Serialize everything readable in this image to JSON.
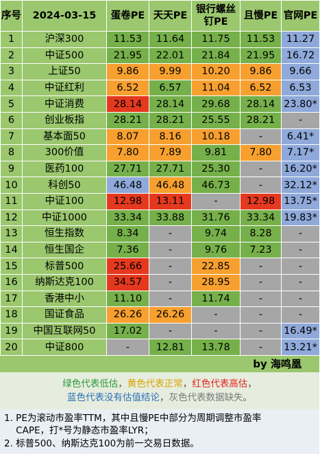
{
  "header": {
    "col_index": "序号",
    "col_date": "2024-03-15",
    "col_danjuan": "蛋卷PE",
    "col_tiantian": "天天PE",
    "col_yinhang": "银行螺丝钉PE",
    "col_qieman": "且慢PE",
    "col_guanwang": "官网PE"
  },
  "rows": [
    {
      "no": "1",
      "name": "沪深300",
      "danjuan": "11.53",
      "tiantian": "11.64",
      "yinhang": "11.75",
      "qieman": "11.53",
      "guanwang": "11.27",
      "colors": [
        "g",
        "g",
        "g",
        "g",
        "b"
      ]
    },
    {
      "no": "2",
      "name": "中证500",
      "danjuan": "21.95",
      "tiantian": "22.01",
      "yinhang": "21.84",
      "qieman": "21.95",
      "guanwang": "16.72",
      "colors": [
        "g",
        "g",
        "g",
        "g",
        "b"
      ]
    },
    {
      "no": "3",
      "name": "上证50",
      "danjuan": "9.86",
      "tiantian": "9.99",
      "yinhang": "10.20",
      "qieman": "9.86",
      "guanwang": "9.66",
      "colors": [
        "y",
        "y",
        "y",
        "y",
        "b"
      ]
    },
    {
      "no": "4",
      "name": "中证红利",
      "danjuan": "6.52",
      "tiantian": "6.57",
      "yinhang": "11.04",
      "qieman": "6.52",
      "guanwang": "6.53",
      "colors": [
        "y",
        "g",
        "y",
        "y",
        "b"
      ]
    },
    {
      "no": "5",
      "name": "中证消费",
      "danjuan": "28.14",
      "tiantian": "28.14",
      "yinhang": "29.68",
      "qieman": "28.14",
      "guanwang": "23.80*",
      "colors": [
        "r",
        "g",
        "g",
        "g",
        "b"
      ]
    },
    {
      "no": "6",
      "name": "创业板指",
      "danjuan": "28.21",
      "tiantian": "28.21",
      "yinhang": "25.55",
      "qieman": "28.21",
      "guanwang": "-",
      "colors": [
        "g",
        "g",
        "g",
        "g",
        "x"
      ]
    },
    {
      "no": "7",
      "name": "基本面50",
      "danjuan": "8.07",
      "tiantian": "8.16",
      "yinhang": "10.18",
      "qieman": "-",
      "guanwang": "6.41*",
      "colors": [
        "y",
        "y",
        "y",
        "x",
        "b"
      ]
    },
    {
      "no": "8",
      "name": "300价值",
      "danjuan": "7.80",
      "tiantian": "7.89",
      "yinhang": "9.81",
      "qieman": "7.80",
      "guanwang": "7.17*",
      "colors": [
        "y",
        "y",
        "g",
        "y",
        "b"
      ]
    },
    {
      "no": "9",
      "name": "医药100",
      "danjuan": "27.71",
      "tiantian": "27.71",
      "yinhang": "25.30",
      "qieman": "-",
      "guanwang": "16.20*",
      "colors": [
        "g",
        "g",
        "g",
        "x",
        "b"
      ]
    },
    {
      "no": "10",
      "name": "科创50",
      "danjuan": "46.48",
      "tiantian": "46.48",
      "yinhang": "46.73",
      "qieman": "-",
      "guanwang": "32.12*",
      "colors": [
        "b",
        "y",
        "g",
        "x",
        "b"
      ]
    },
    {
      "no": "11",
      "name": "中证100",
      "danjuan": "12.98",
      "tiantian": "13.11",
      "yinhang": "-",
      "qieman": "12.98",
      "guanwang": "13.75*",
      "colors": [
        "r",
        "r",
        "x",
        "r",
        "b"
      ]
    },
    {
      "no": "12",
      "name": "中证1000",
      "danjuan": "33.34",
      "tiantian": "33.88",
      "yinhang": "31.76",
      "qieman": "33.34",
      "guanwang": "19.83*",
      "colors": [
        "g",
        "g",
        "g",
        "g",
        "b"
      ]
    },
    {
      "no": "13",
      "name": "恒生指数",
      "danjuan": "8.34",
      "tiantian": "-",
      "yinhang": "9.74",
      "qieman": "8.28",
      "guanwang": "-",
      "colors": [
        "g",
        "x",
        "g",
        "g",
        "x"
      ]
    },
    {
      "no": "14",
      "name": "恒生国企",
      "danjuan": "7.36",
      "tiantian": "-",
      "yinhang": "9.76",
      "qieman": "7.23",
      "guanwang": "-",
      "colors": [
        "g",
        "x",
        "g",
        "g",
        "x"
      ]
    },
    {
      "no": "15",
      "name": "标普500",
      "danjuan": "25.66",
      "tiantian": "-",
      "yinhang": "22.85",
      "qieman": "-",
      "guanwang": "-",
      "colors": [
        "r",
        "x",
        "y",
        "x",
        "x"
      ]
    },
    {
      "no": "16",
      "name": "纳斯达克100",
      "danjuan": "34.57",
      "tiantian": "-",
      "yinhang": "28.95",
      "qieman": "-",
      "guanwang": "-",
      "colors": [
        "r",
        "x",
        "y",
        "x",
        "x"
      ]
    },
    {
      "no": "17",
      "name": "香港中小",
      "danjuan": "11.10",
      "tiantian": "-",
      "yinhang": "11.74",
      "qieman": "-",
      "guanwang": "-",
      "colors": [
        "g",
        "x",
        "g",
        "x",
        "x"
      ]
    },
    {
      "no": "18",
      "name": "国证食品",
      "danjuan": "26.26",
      "tiantian": "26.26",
      "yinhang": "-",
      "qieman": "-",
      "guanwang": "-",
      "colors": [
        "y",
        "y",
        "x",
        "x",
        "x"
      ]
    },
    {
      "no": "19",
      "name": "中国互联网50",
      "danjuan": "17.02",
      "tiantian": "-",
      "yinhang": "-",
      "qieman": "-",
      "guanwang": "16.49*",
      "colors": [
        "g",
        "x",
        "x",
        "x",
        "b"
      ]
    },
    {
      "no": "20",
      "name": "中证800",
      "danjuan": "-",
      "tiantian": "12.81",
      "yinhang": "13.78",
      "qieman": "-",
      "guanwang": "13.21*",
      "colors": [
        "x",
        "g",
        "g",
        "x",
        "b"
      ]
    }
  ],
  "byline": "by  海鸣凰",
  "legend": {
    "green": "绿色代表低估",
    "sep1": "，",
    "yellow": "黄色代表正常",
    "sep2": "，",
    "red": "红色代表高估",
    "sep3": "，",
    "blue": "蓝色代表没有估值结论",
    "sep4": "，",
    "gray": "灰色代表数据缺失",
    "end": "。"
  },
  "notes": [
    "1. PE为滚动市盈率TTM，其中且慢PE中部分为周期调整市盈率",
    "    CAPE，打*号为静态市盈率LYR；",
    "2. 标普500、纳斯达克100为前一交易日数据。"
  ],
  "colors": {
    "green": "#76b04a",
    "yellow": "#f7a02f",
    "red": "#e5391f",
    "blue": "#8fa9da",
    "gray": "#a6a6a6",
    "header": "#9bc76e"
  }
}
